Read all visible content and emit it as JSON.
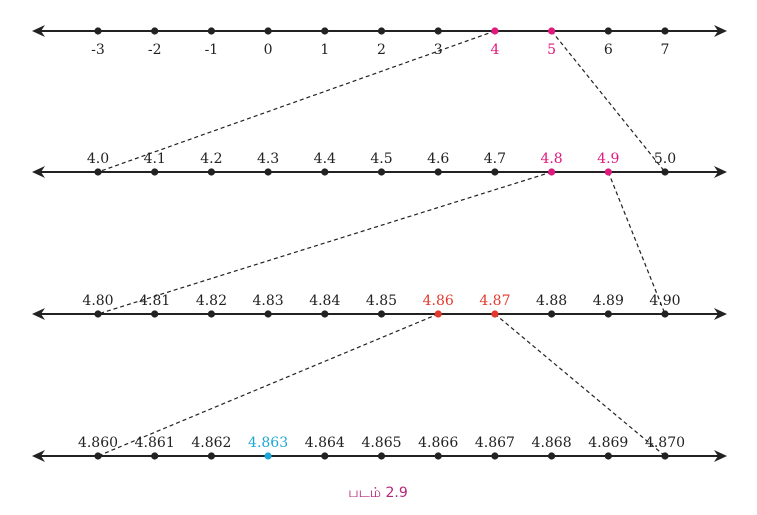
{
  "figure": {
    "caption": "படம் 2.9",
    "colors": {
      "line": "#222222",
      "label_default": "#222222",
      "highlight_magenta": "#e0197d",
      "highlight_red": "#e23a2e",
      "highlight_cyan": "#1fa6d6",
      "caption": "#b5267a"
    },
    "number_lines": [
      {
        "ticks": [
          "-3",
          "-2",
          "-1",
          "0",
          "1",
          "2",
          "3",
          "4",
          "5",
          "6",
          "7"
        ],
        "label_position": "below",
        "highlights": [
          {
            "index": 7,
            "color": "highlight_magenta"
          },
          {
            "index": 8,
            "color": "highlight_magenta"
          }
        ]
      },
      {
        "ticks": [
          "4.0",
          "4.1",
          "4.2",
          "4.3",
          "4.4",
          "4.5",
          "4.6",
          "4.7",
          "4.8",
          "4.9",
          "5.0"
        ],
        "label_position": "above",
        "highlights": [
          {
            "index": 8,
            "color": "highlight_magenta"
          },
          {
            "index": 9,
            "color": "highlight_magenta"
          }
        ]
      },
      {
        "ticks": [
          "4.80",
          "4.81",
          "4.82",
          "4.83",
          "4.84",
          "4.85",
          "4.86",
          "4.87",
          "4.88",
          "4.89",
          "4.90"
        ],
        "label_position": "above",
        "highlights": [
          {
            "index": 6,
            "color": "highlight_red"
          },
          {
            "index": 7,
            "color": "highlight_red"
          }
        ]
      },
      {
        "ticks": [
          "4.860",
          "4.861",
          "4.862",
          "4.863",
          "4.864",
          "4.865",
          "4.866",
          "4.867",
          "4.868",
          "4.869",
          "4.870"
        ],
        "label_position": "above",
        "highlights": [
          {
            "index": 3,
            "color": "highlight_cyan"
          }
        ]
      }
    ],
    "zoom_connectors": [
      {
        "from_line": 0,
        "from_index": 7,
        "to_line": 1,
        "to_index": 0
      },
      {
        "from_line": 0,
        "from_index": 8,
        "to_line": 1,
        "to_index": 10
      },
      {
        "from_line": 1,
        "from_index": 8,
        "to_line": 2,
        "to_index": 0
      },
      {
        "from_line": 1,
        "from_index": 9,
        "to_line": 2,
        "to_index": 10
      },
      {
        "from_line": 2,
        "from_index": 6,
        "to_line": 3,
        "to_index": 0
      },
      {
        "from_line": 2,
        "from_index": 7,
        "to_line": 3,
        "to_index": 10
      }
    ]
  }
}
